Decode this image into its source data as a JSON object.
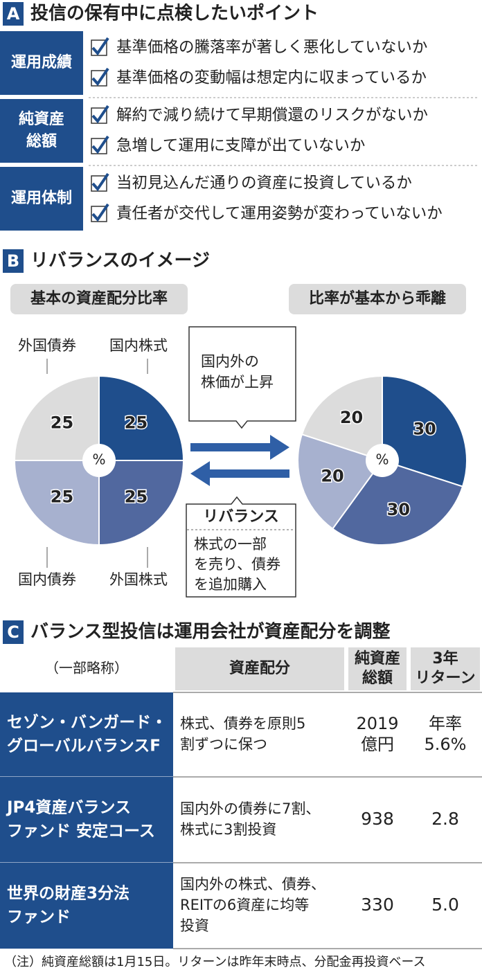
{
  "section_a": {
    "letter": "A",
    "title": "投信の保有中に点検したいポイント",
    "groups": [
      {
        "label": [
          "運用成績"
        ],
        "items": [
          "基準価格の騰落率が著しく悪化していないか",
          "基準価格の変動幅は想定内に収まっているか"
        ]
      },
      {
        "label": [
          "純資産",
          "総額"
        ],
        "items": [
          "解約で減り続けて早期償還のリスクがないか",
          "急増して運用に支障が出ていないか"
        ]
      },
      {
        "label": [
          "運用体制"
        ],
        "items": [
          "当初見込んだ通りの資産に投資しているか",
          "責任者が交代して運用姿勢が変わっていないか"
        ]
      }
    ]
  },
  "section_b": {
    "letter": "B",
    "title": "リバランスのイメージ",
    "pies": [
      {
        "title": "基本の資産配分比率",
        "categories": [
          "国内株式",
          "外国株式",
          "国内債券",
          "外国債券"
        ],
        "values": [
          25,
          25,
          25,
          25
        ],
        "colors": [
          "#1f4e8c",
          "#51689f",
          "#a7b1cf",
          "#dcdcdc"
        ],
        "center_label": "%"
      },
      {
        "title": "比率が基本から乖離",
        "values": [
          30,
          30,
          20,
          20
        ],
        "colors": [
          "#1f4e8c",
          "#51689f",
          "#a7b1cf",
          "#dcdcdc"
        ],
        "center_label": "%"
      }
    ],
    "trigger": [
      "国内外の",
      "株価が上昇"
    ],
    "action": {
      "title": "リバランス",
      "lines": [
        "株式の一部",
        "を売り、債券",
        "を追加購入"
      ]
    }
  },
  "section_c": {
    "letter": "C",
    "title": "バランス型投信は運用会社が資産配分を調整",
    "table": {
      "header": [
        [
          "（一部略称）"
        ],
        [
          "資産配分"
        ],
        [
          "純資産",
          "総額"
        ],
        [
          "3年",
          "リターン"
        ]
      ],
      "rows": [
        [
          [
            "セゾン・バンガード・",
            "グローバルバランスF"
          ],
          [
            "株式、債券を原則5",
            "割ずつに保つ"
          ],
          [
            "2019",
            "億円"
          ],
          [
            "年率",
            "5.6%"
          ]
        ],
        [
          [
            "JP4資産バランス",
            "ファンド 安定コース"
          ],
          [
            "国内外の債券に7割、",
            "株式に3割投資"
          ],
          [
            "938"
          ],
          [
            "2.8"
          ]
        ],
        [
          [
            "世界の財産3分法",
            "ファンド"
          ],
          [
            "国内外の株式、債券、",
            "REITの6資産に均等",
            "投資"
          ],
          [
            "330"
          ],
          [
            "5.0"
          ]
        ]
      ]
    },
    "note": "（注）純資産総額は1月15日。リターンは昨年末時点、分配金再投資ベース"
  }
}
